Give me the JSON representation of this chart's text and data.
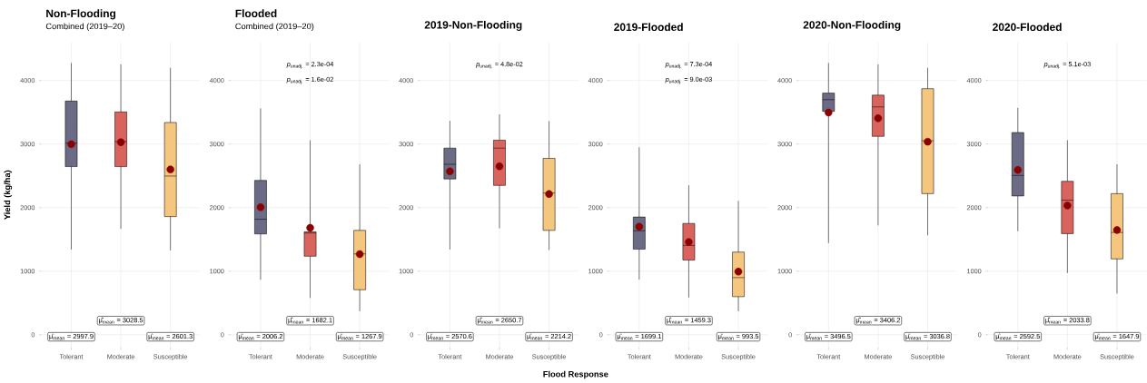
{
  "chart_data": [
    {
      "type": "box",
      "title": "Non-Flooding",
      "subtitle": "Combined (2019–20)",
      "ylabel": "Yield (kg/ha)",
      "categories": [
        "Tolerant",
        "Moderate",
        "Susceptible"
      ],
      "colors": [
        "#6b6b85",
        "#d9645e",
        "#f5c77e"
      ],
      "ylim": [
        -200,
        4600
      ],
      "yticks": [
        0,
        1000,
        2000,
        3000,
        4000
      ],
      "grid": true,
      "boxes": [
        {
          "low": 1340,
          "q1": 2645,
          "median": 3015,
          "q3": 3676,
          "high": 4277,
          "mean": 2997.9
        },
        {
          "low": 1665,
          "q1": 2645,
          "median": 3038,
          "q3": 3505,
          "high": 4254,
          "mean": 3028.5
        },
        {
          "low": 1327,
          "q1": 1859,
          "median": 2497,
          "q3": 3339,
          "high": 4199,
          "mean": 2601.3
        }
      ],
      "annotations": [
        "μ̂$_{mean}$ = 2997.9",
        "μ̂$_{mean}$ = 3028.5",
        "μ̂$_{mean}$ = 2601.3"
      ]
    },
    {
      "type": "box",
      "title": "Flooded",
      "subtitle": "Combined (2019–20)",
      "categories": [
        "Tolerant",
        "Moderate",
        "Susceptible"
      ],
      "colors": [
        "#6b6b85",
        "#d9645e",
        "#f5c77e"
      ],
      "ylim": [
        -200,
        4600
      ],
      "yticks": [
        0,
        1000,
        2000,
        3000,
        4000
      ],
      "grid": true,
      "boxes": [
        {
          "low": 865,
          "q1": 1586,
          "median": 1817,
          "q3": 2428,
          "high": 3561,
          "mean": 2006.2
        },
        {
          "low": 578,
          "q1": 1235,
          "median": 1600,
          "q3": 1620,
          "high": 3061,
          "mean": 1682.1
        },
        {
          "low": 370,
          "q1": 708,
          "median": 1272,
          "q3": 1642,
          "high": 2682,
          "mean": 1267.9
        }
      ],
      "annotations": [
        "*p*$_{unadj.}$ = 2.3e-04",
        "*p*$_{unadj.}$ = 1.6e-02",
        "μ̂$_{mean}$ = 2006.2",
        "μ̂$_{mean}$ = 1682.1",
        "μ̂$_{mean}$ = 1267.9"
      ]
    },
    {
      "type": "box",
      "title": "2019-Non-Flooding",
      "xlabel": "Flood Response",
      "categories": [
        "Tolerant",
        "Moderate",
        "Susceptible"
      ],
      "colors": [
        "#6b6b85",
        "#d9645e",
        "#f5c77e"
      ],
      "ylim": [
        -200,
        4600
      ],
      "yticks": [
        0,
        1000,
        2000,
        3000,
        4000
      ],
      "grid": true,
      "boxes": [
        {
          "low": 1341,
          "q1": 2451,
          "median": 2682,
          "q3": 2936,
          "high": 3366,
          "mean": 2570.6
        },
        {
          "low": 1674,
          "q1": 2349,
          "median": 2936,
          "q3": 3061,
          "high": 3468,
          "mean": 2650.7
        },
        {
          "low": 1332,
          "q1": 1642,
          "median": 2229,
          "q3": 2775,
          "high": 3362,
          "mean": 2214.2
        }
      ],
      "annotations": [
        "*p*$_{unadj.}$ = 4.8e-02",
        "μ̂$_{mean}$ = 2570.6",
        "μ̂$_{mean}$ = 2650.7",
        "μ̂$_{mean}$ = 2214.2"
      ]
    },
    {
      "type": "box",
      "title": "2019-Flooded",
      "categories": [
        "Tolerant",
        "Moderate",
        "Susceptible"
      ],
      "colors": [
        "#6b6b85",
        "#d9645e",
        "#f5c77e"
      ],
      "ylim": [
        -200,
        4600
      ],
      "yticks": [
        0,
        1000,
        2000,
        3000,
        4000
      ],
      "grid": true,
      "boxes": [
        {
          "low": 866,
          "q1": 1346,
          "median": 1636,
          "q3": 1852,
          "high": 2949,
          "mean": 1699.1
        },
        {
          "low": 585,
          "q1": 1175,
          "median": 1406,
          "q3": 1751,
          "high": 2350,
          "mean": 1459.3
        },
        {
          "low": 369,
          "q1": 599,
          "median": 899,
          "q3": 1300,
          "high": 2106,
          "mean": 993.5
        }
      ],
      "annotations": [
        "*p*$_{unadj.}$ = 7.3e-04",
        "*p*$_{unadj.}$ = 9.0e-03",
        "μ̂$_{mean}$ = 1699.1",
        "μ̂$_{mean}$ = 1459.3",
        "μ̂$_{mean}$ = 993.5"
      ]
    },
    {
      "type": "box",
      "title": "2020-Non-Flooding",
      "categories": [
        "Tolerant",
        "Moderate",
        "Susceptible"
      ],
      "colors": [
        "#6b6b85",
        "#d9645e",
        "#f5c77e"
      ],
      "ylim": [
        -200,
        4600
      ],
      "yticks": [
        0,
        1000,
        2000,
        3000,
        4000
      ],
      "grid": true,
      "boxes": [
        {
          "low": 1443,
          "q1": 3514,
          "median": 3699,
          "q3": 3801,
          "high": 4277,
          "mean": 3496.5
        },
        {
          "low": 1720,
          "q1": 3121,
          "median": 3584,
          "q3": 3769,
          "high": 4254,
          "mean": 3406.2
        },
        {
          "low": 1563,
          "q1": 2220,
          "median": 3052,
          "q3": 3871,
          "high": 4199,
          "mean": 3036.8
        }
      ],
      "annotations": [
        "μ̂$_{mean}$ = 3496.5",
        "μ̂$_{mean}$ = 3406.2",
        "μ̂$_{mean}$ = 3036.8"
      ]
    },
    {
      "type": "box",
      "title": "2020-Flooded",
      "categories": [
        "Tolerant",
        "Moderate",
        "Susceptible"
      ],
      "colors": [
        "#6b6b85",
        "#d9645e",
        "#f5c77e"
      ],
      "ylim": [
        -200,
        4600
      ],
      "yticks": [
        0,
        1000,
        2000,
        3000,
        4000
      ],
      "grid": true,
      "boxes": [
        {
          "low": 1628,
          "q1": 2183,
          "median": 2506,
          "q3": 3181,
          "high": 3570,
          "mean": 2592.5
        },
        {
          "low": 971,
          "q1": 1591,
          "median": 2118,
          "q3": 2414,
          "high": 3061,
          "mean": 2033.8
        },
        {
          "low": 647,
          "q1": 1193,
          "median": 1609,
          "q3": 2220,
          "high": 2682,
          "mean": 1647.9
        }
      ],
      "annotations": [
        "*p*$_{unadj.}$ = 5.1e-03",
        "μ̂$_{mean}$ = 2592.5",
        "μ̂$_{mean}$ = 2033.8",
        "μ̂$_{mean}$ = 1647.9"
      ]
    }
  ]
}
